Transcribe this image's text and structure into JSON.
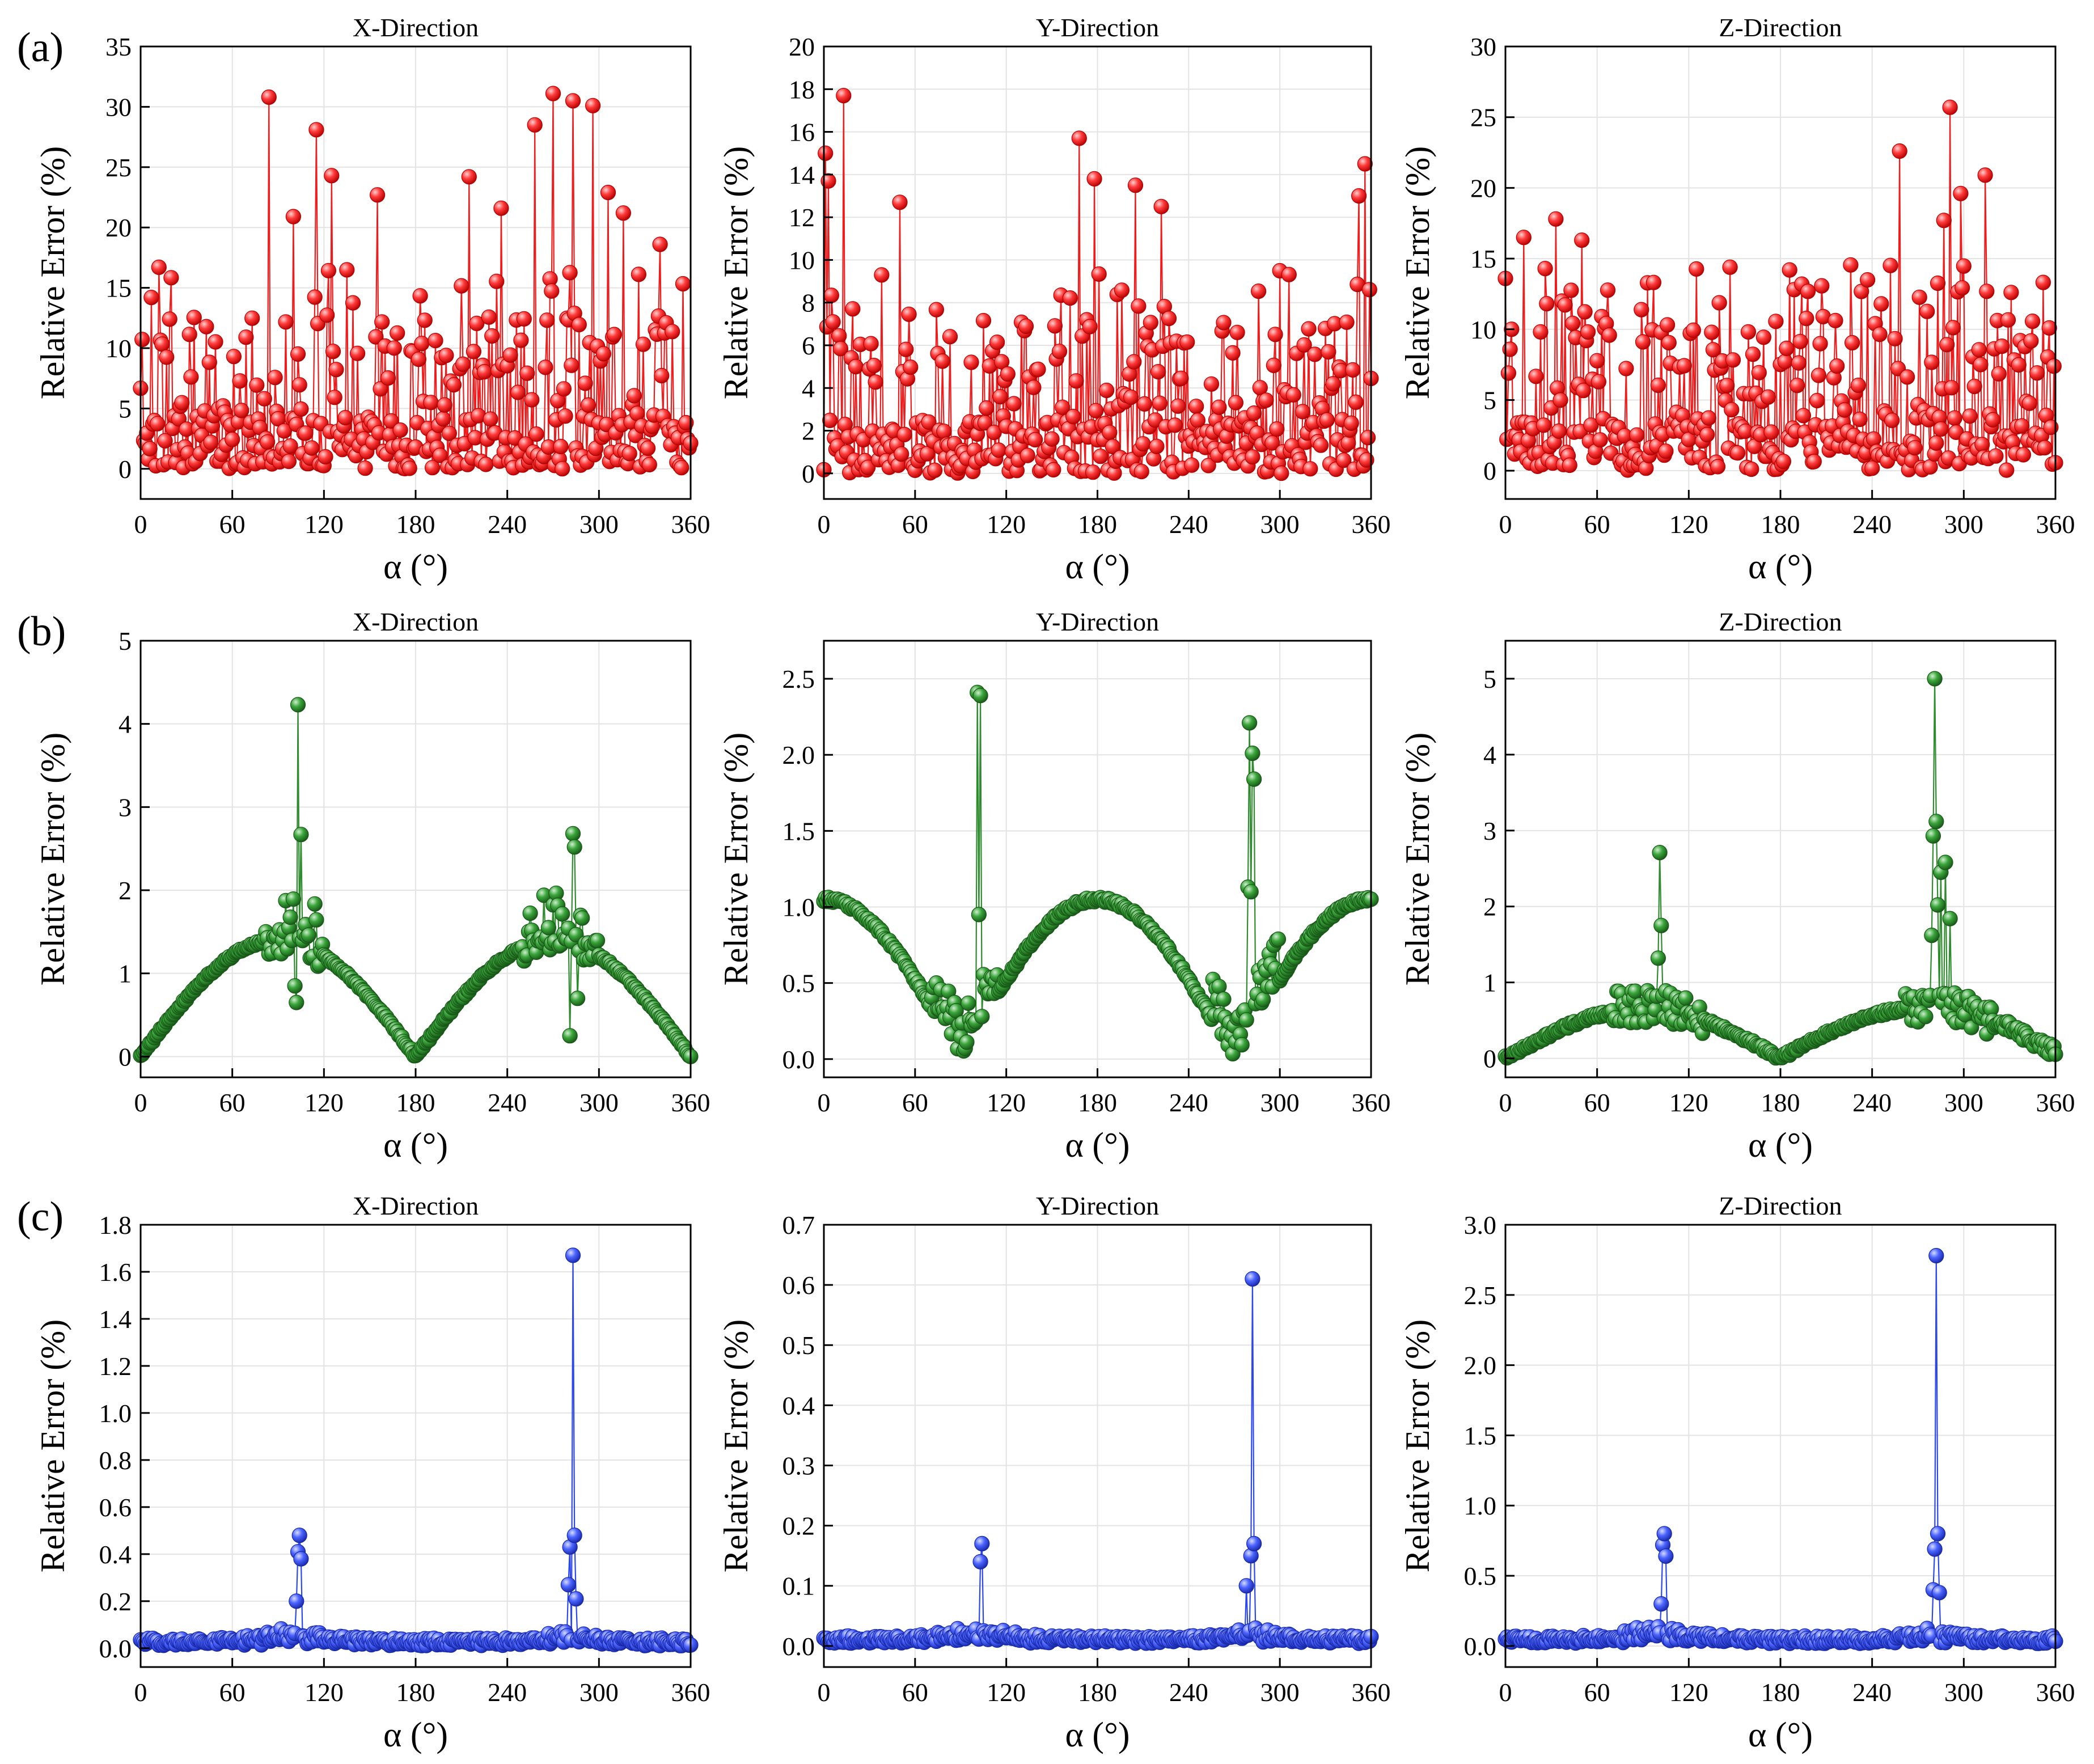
{
  "figure": {
    "row_labels": [
      "(a)",
      "(b)",
      "(c)"
    ]
  },
  "styles": {
    "red": {
      "line": "#ee1c1c",
      "fill": "#ff3a3a",
      "light": "#ffd0d0",
      "dark": "#b40000"
    },
    "green": {
      "line": "#2e8b2e",
      "fill": "#3aa53a",
      "light": "#cfeecf",
      "dark": "#175717"
    },
    "blue": {
      "line": "#2d47ee",
      "fill": "#4c64ff",
      "light": "#d6dcff",
      "dark": "#1728a8"
    }
  },
  "chart_data": [
    {
      "id": "a-x",
      "row": 0,
      "col": 0,
      "type": "line",
      "style": "red",
      "pattern": "noisy",
      "seed": 11,
      "title": "X-Direction",
      "xlabel": "α (°)",
      "ylabel": "Relative Error (%)",
      "xlim": [
        0,
        360
      ],
      "ylim": [
        -2.5,
        35
      ],
      "xticks": [
        0,
        60,
        120,
        180,
        240,
        300,
        360
      ],
      "yticks": [
        0,
        5,
        10,
        15,
        20,
        25,
        30,
        35
      ],
      "ytick_labels": [
        "0",
        "5",
        "10",
        "15",
        "20",
        "25",
        "30",
        "35"
      ],
      "n_points": 361,
      "highlights": [
        [
          7,
          14.2
        ],
        [
          12,
          16.7
        ],
        [
          84,
          30.8
        ],
        [
          100,
          20.9
        ],
        [
          115,
          28.1
        ],
        [
          125,
          24.3
        ],
        [
          155,
          22.7
        ],
        [
          215,
          24.2
        ],
        [
          236,
          21.6
        ],
        [
          258,
          28.5
        ],
        [
          270,
          31.1
        ],
        [
          283,
          30.5
        ],
        [
          296,
          30.1
        ],
        [
          306,
          22.9
        ],
        [
          316,
          21.2
        ],
        [
          340,
          18.6
        ]
      ]
    },
    {
      "id": "a-y",
      "row": 0,
      "col": 1,
      "type": "line",
      "style": "red",
      "pattern": "noisy",
      "seed": 23,
      "title": "Y-Direction",
      "xlabel": "α (°)",
      "ylabel": "Relative Error (%)",
      "xlim": [
        0,
        360
      ],
      "ylim": [
        -1.2,
        20
      ],
      "xticks": [
        0,
        60,
        120,
        180,
        240,
        300,
        360
      ],
      "yticks": [
        0,
        2,
        4,
        6,
        8,
        10,
        12,
        14,
        16,
        18,
        20
      ],
      "ytick_labels": [
        "0",
        "2",
        "4",
        "6",
        "8",
        "10",
        "12",
        "14",
        "16",
        "18",
        "20"
      ],
      "n_points": 361,
      "highlights": [
        [
          1,
          15.0
        ],
        [
          3,
          13.7
        ],
        [
          13,
          17.7
        ],
        [
          50,
          12.7
        ],
        [
          168,
          15.7
        ],
        [
          178,
          13.8
        ],
        [
          205,
          13.5
        ],
        [
          222,
          12.5
        ],
        [
          356,
          14.5
        ],
        [
          352,
          13.0
        ]
      ]
    },
    {
      "id": "a-z",
      "row": 0,
      "col": 2,
      "type": "line",
      "style": "red",
      "pattern": "noisy",
      "seed": 37,
      "title": "Z-Direction",
      "xlabel": "α (°)",
      "ylabel": "Relative Error (%)",
      "xlim": [
        0,
        360
      ],
      "ylim": [
        -2,
        30
      ],
      "xticks": [
        0,
        60,
        120,
        180,
        240,
        300,
        360
      ],
      "yticks": [
        0,
        5,
        10,
        15,
        20,
        25,
        30
      ],
      "ytick_labels": [
        "0",
        "5",
        "10",
        "15",
        "20",
        "25",
        "30"
      ],
      "n_points": 361,
      "highlights": [
        [
          12,
          16.5
        ],
        [
          33,
          17.8
        ],
        [
          50,
          16.3
        ],
        [
          258,
          22.6
        ],
        [
          291,
          25.7
        ],
        [
          298,
          19.6
        ],
        [
          314,
          20.9
        ],
        [
          287,
          17.7
        ]
      ]
    },
    {
      "id": "b-x",
      "row": 1,
      "col": 0,
      "type": "line",
      "style": "green",
      "pattern": "bx",
      "seed": 41,
      "title": "X-Direction",
      "xlabel": "α (°)",
      "ylabel": "Relative Error (%)",
      "xlim": [
        0,
        360
      ],
      "ylim": [
        -0.25,
        5
      ],
      "xticks": [
        0,
        60,
        120,
        180,
        240,
        300,
        360
      ],
      "yticks": [
        0,
        1,
        2,
        3,
        4,
        5
      ],
      "ytick_labels": [
        "0",
        "1",
        "2",
        "3",
        "4",
        "5"
      ],
      "n_points": 361,
      "highlights": [
        [
          103,
          4.23
        ],
        [
          105,
          2.67
        ],
        [
          101,
          0.85
        ],
        [
          102,
          0.65
        ],
        [
          283,
          2.68
        ],
        [
          284,
          2.52
        ],
        [
          281,
          0.25
        ],
        [
          286,
          0.7
        ]
      ]
    },
    {
      "id": "b-y",
      "row": 1,
      "col": 1,
      "type": "line",
      "style": "green",
      "pattern": "by",
      "seed": 53,
      "title": "Y-Direction",
      "xlabel": "α (°)",
      "ylabel": "Relative Error (%)",
      "xlim": [
        0,
        360
      ],
      "ylim": [
        -0.12,
        2.75
      ],
      "xticks": [
        0,
        60,
        120,
        180,
        240,
        300,
        360
      ],
      "yticks": [
        0,
        0.5,
        1.0,
        1.5,
        2.0,
        2.5
      ],
      "ytick_labels": [
        "0.0",
        "0.5",
        "1.0",
        "1.5",
        "2.0",
        "2.5"
      ],
      "n_points": 361,
      "highlights": [
        [
          101,
          2.41
        ],
        [
          103,
          2.39
        ],
        [
          102,
          0.95
        ],
        [
          280,
          2.21
        ],
        [
          282,
          2.01
        ],
        [
          283,
          1.84
        ],
        [
          279,
          1.13
        ],
        [
          281,
          1.1
        ]
      ]
    },
    {
      "id": "b-z",
      "row": 1,
      "col": 2,
      "type": "line",
      "style": "green",
      "pattern": "bz",
      "seed": 67,
      "title": "Z-Direction",
      "xlabel": "α (°)",
      "ylabel": "Relative Error (%)",
      "xlim": [
        0,
        360
      ],
      "ylim": [
        -0.25,
        5.5
      ],
      "xticks": [
        0,
        60,
        120,
        180,
        240,
        300,
        360
      ],
      "yticks": [
        0,
        1,
        2,
        3,
        4,
        5
      ],
      "ytick_labels": [
        "0",
        "1",
        "2",
        "3",
        "4",
        "5"
      ],
      "n_points": 361,
      "highlights": [
        [
          101,
          2.71
        ],
        [
          102,
          1.75
        ],
        [
          100,
          1.32
        ],
        [
          281,
          5.0
        ],
        [
          282,
          3.12
        ],
        [
          280,
          2.93
        ],
        [
          285,
          2.45
        ],
        [
          288,
          2.58
        ],
        [
          283,
          2.02
        ],
        [
          279,
          1.62
        ],
        [
          291,
          1.84
        ]
      ]
    },
    {
      "id": "c-x",
      "row": 2,
      "col": 0,
      "type": "line",
      "style": "blue",
      "pattern": "spiky",
      "seed": 71,
      "title": "X-Direction",
      "xlabel": "α (°)",
      "ylabel": "Relative Error (%)",
      "xlim": [
        0,
        360
      ],
      "ylim": [
        -0.08,
        1.8
      ],
      "xticks": [
        0,
        60,
        120,
        180,
        240,
        300,
        360
      ],
      "yticks": [
        0,
        0.2,
        0.4,
        0.6,
        0.8,
        1.0,
        1.2,
        1.4,
        1.6,
        1.8
      ],
      "ytick_labels": [
        "0.0",
        "0.2",
        "0.4",
        "0.6",
        "0.8",
        "1.0",
        "1.2",
        "1.4",
        "1.6",
        "1.8"
      ],
      "n_points": 361,
      "highlights": [
        [
          104,
          0.48
        ],
        [
          103,
          0.41
        ],
        [
          105,
          0.38
        ],
        [
          102,
          0.2
        ],
        [
          283,
          1.67
        ],
        [
          284,
          0.48
        ],
        [
          281,
          0.43
        ],
        [
          280,
          0.27
        ],
        [
          285,
          0.21
        ]
      ]
    },
    {
      "id": "c-y",
      "row": 2,
      "col": 1,
      "type": "line",
      "style": "blue",
      "pattern": "spiky",
      "seed": 83,
      "title": "Y-Direction",
      "xlabel": "α (°)",
      "ylabel": "Relative Error (%)",
      "xlim": [
        0,
        360
      ],
      "ylim": [
        -0.035,
        0.7
      ],
      "xticks": [
        0,
        60,
        120,
        180,
        240,
        300,
        360
      ],
      "yticks": [
        0,
        0.1,
        0.2,
        0.3,
        0.4,
        0.5,
        0.6,
        0.7
      ],
      "ytick_labels": [
        "0.0",
        "0.1",
        "0.2",
        "0.3",
        "0.4",
        "0.5",
        "0.6",
        "0.7"
      ],
      "n_points": 361,
      "highlights": [
        [
          104,
          0.17
        ],
        [
          103,
          0.14
        ],
        [
          282,
          0.61
        ],
        [
          283,
          0.17
        ],
        [
          281,
          0.15
        ],
        [
          278,
          0.1
        ]
      ]
    },
    {
      "id": "c-z",
      "row": 2,
      "col": 2,
      "type": "line",
      "style": "blue",
      "pattern": "spiky",
      "seed": 97,
      "title": "Z-Direction",
      "xlabel": "α (°)",
      "ylabel": "Relative Error (%)",
      "xlim": [
        0,
        360
      ],
      "ylim": [
        -0.15,
        3.0
      ],
      "xticks": [
        0,
        60,
        120,
        180,
        240,
        300,
        360
      ],
      "yticks": [
        0,
        0.5,
        1.0,
        1.5,
        2.0,
        2.5,
        3.0
      ],
      "ytick_labels": [
        "0.0",
        "0.5",
        "1.0",
        "1.5",
        "2.0",
        "2.5",
        "3.0"
      ],
      "n_points": 361,
      "highlights": [
        [
          104,
          0.8
        ],
        [
          103,
          0.72
        ],
        [
          105,
          0.64
        ],
        [
          102,
          0.3
        ],
        [
          282,
          2.78
        ],
        [
          283,
          0.8
        ],
        [
          281,
          0.69
        ],
        [
          280,
          0.4
        ],
        [
          284,
          0.38
        ]
      ]
    }
  ]
}
